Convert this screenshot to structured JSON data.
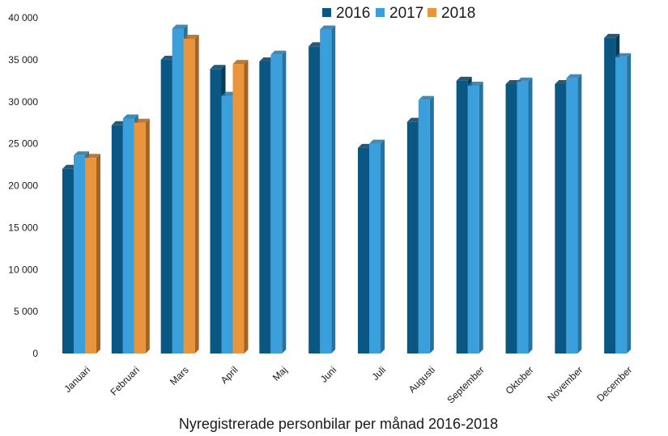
{
  "chart_data": {
    "type": "bar",
    "title": "",
    "xlabel": "Nyregistrerade personbilar per månad 2016-2018",
    "ylabel": "",
    "ylim": [
      0,
      40000
    ],
    "yticks": [
      0,
      5000,
      10000,
      15000,
      20000,
      25000,
      30000,
      35000,
      40000
    ],
    "ytick_labels": [
      "0",
      "5 000",
      "10 000",
      "15 000",
      "20 000",
      "25 000",
      "30 000",
      "35 000",
      "40 000"
    ],
    "categories": [
      "Januari",
      "Februari",
      "Mars",
      "April",
      "Maj",
      "Juni",
      "Juli",
      "Augusti",
      "September",
      "Oktober",
      "November",
      "December"
    ],
    "series": [
      {
        "name": "2016",
        "color": "#0b5783",
        "side_color": "#063a59",
        "values": [
          22000,
          27200,
          35000,
          33900,
          34800,
          36600,
          24500,
          27600,
          32500,
          32100,
          32100,
          37600
        ]
      },
      {
        "name": "2017",
        "color": "#3a9fdb",
        "side_color": "#2573a3",
        "values": [
          23600,
          28000,
          38700,
          30700,
          35600,
          38600,
          25000,
          30200,
          31900,
          32400,
          32800,
          35300
        ]
      },
      {
        "name": "2018",
        "color": "#e8953e",
        "side_color": "#a8641f",
        "values": [
          23300,
          27500,
          37500,
          34500,
          null,
          null,
          null,
          null,
          null,
          null,
          null,
          null
        ]
      }
    ],
    "grid": false,
    "legend_position": "top-right",
    "style": "3d-bar"
  }
}
